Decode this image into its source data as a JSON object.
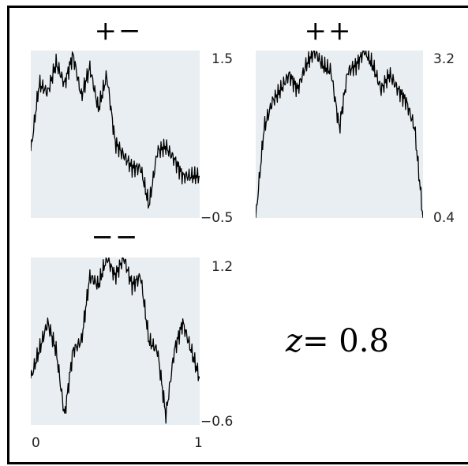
{
  "chart_data": [
    {
      "type": "line",
      "title": "+−",
      "ylim": [
        -0.5,
        1.5
      ],
      "xlim": [
        0,
        1
      ],
      "yticks": [
        "1.5",
        "−0.5"
      ],
      "series": [
        {
          "x": [
            0,
            0.05,
            0.1,
            0.15,
            0.2,
            0.25,
            0.3,
            0.35,
            0.4,
            0.45,
            0.5,
            0.55,
            0.6,
            0.65,
            0.7,
            0.75,
            0.8,
            0.85,
            0.9,
            0.95,
            1
          ],
          "y": [
            0.3,
            1.1,
            1.0,
            1.35,
            1.1,
            1.45,
            0.95,
            1.3,
            0.8,
            1.2,
            0.4,
            0.25,
            0.1,
            0.1,
            -0.35,
            0.3,
            0.35,
            0.2,
            0.0,
            0.0,
            0.0
          ]
        }
      ]
    },
    {
      "type": "line",
      "title": "++",
      "ylim": [
        0.4,
        3.2
      ],
      "xlim": [
        0,
        1
      ],
      "yticks": [
        "3.2",
        "0.4"
      ],
      "series": [
        {
          "x": [
            0,
            0.05,
            0.1,
            0.15,
            0.2,
            0.25,
            0.3,
            0.35,
            0.4,
            0.45,
            0.5,
            0.55,
            0.6,
            0.65,
            0.7,
            0.75,
            0.8,
            0.85,
            0.9,
            0.95,
            1
          ],
          "y": [
            0.4,
            1.9,
            2.35,
            2.55,
            2.8,
            2.55,
            2.95,
            3.2,
            2.95,
            2.85,
            1.9,
            2.85,
            2.95,
            3.2,
            2.95,
            2.55,
            2.8,
            2.55,
            2.35,
            1.9,
            0.4
          ]
        }
      ]
    },
    {
      "type": "line",
      "title": "−−",
      "ylim": [
        -0.6,
        1.2
      ],
      "xlim": [
        0,
        1
      ],
      "xticks": [
        "0",
        "1"
      ],
      "yticks": [
        "1.2",
        "−0.6"
      ],
      "series": [
        {
          "x": [
            0,
            0.05,
            0.1,
            0.15,
            0.2,
            0.25,
            0.3,
            0.35,
            0.4,
            0.45,
            0.5,
            0.55,
            0.6,
            0.65,
            0.7,
            0.75,
            0.8,
            0.85,
            0.9,
            0.95,
            1
          ],
          "y": [
            -0.1,
            0.2,
            0.5,
            0.2,
            -0.5,
            0.2,
            0.3,
            1.0,
            0.9,
            1.2,
            1.0,
            1.2,
            0.9,
            1.0,
            0.3,
            0.2,
            -0.5,
            0.2,
            0.5,
            0.2,
            -0.1
          ]
        }
      ]
    }
  ],
  "annotation": {
    "z_var": "z",
    "z_eq": "= 0.8"
  },
  "colors": {
    "panel_bg": "#e8eef1",
    "line": "#000000"
  }
}
